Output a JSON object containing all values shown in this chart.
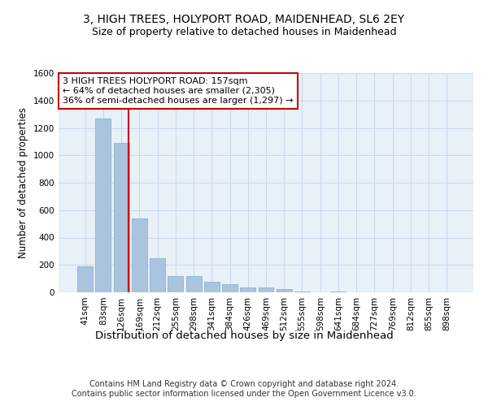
{
  "title1": "3, HIGH TREES, HOLYPORT ROAD, MAIDENHEAD, SL6 2EY",
  "title2": "Size of property relative to detached houses in Maidenhead",
  "xlabel": "Distribution of detached houses by size in Maidenhead",
  "ylabel": "Number of detached properties",
  "bar_color": "#aac4e0",
  "bar_edge_color": "#7aaed0",
  "grid_color": "#c8d8ec",
  "bg_color": "#e8f0f8",
  "categories": [
    "41sqm",
    "83sqm",
    "126sqm",
    "169sqm",
    "212sqm",
    "255sqm",
    "298sqm",
    "341sqm",
    "384sqm",
    "426sqm",
    "469sqm",
    "512sqm",
    "555sqm",
    "598sqm",
    "641sqm",
    "684sqm",
    "727sqm",
    "769sqm",
    "812sqm",
    "855sqm",
    "898sqm"
  ],
  "values": [
    190,
    1270,
    1090,
    540,
    250,
    120,
    120,
    80,
    60,
    35,
    35,
    25,
    5,
    0,
    5,
    0,
    0,
    0,
    0,
    0,
    0
  ],
  "ylim": [
    0,
    1600
  ],
  "yticks": [
    0,
    200,
    400,
    600,
    800,
    1000,
    1200,
    1400,
    1600
  ],
  "vline_x": 2.38,
  "vline_color": "#cc0000",
  "annotation_text": "3 HIGH TREES HOLYPORT ROAD: 157sqm\n← 64% of detached houses are smaller (2,305)\n36% of semi-detached houses are larger (1,297) →",
  "annotation_box_color": "#ffffff",
  "annotation_box_edge": "#cc0000",
  "footer1": "Contains HM Land Registry data © Crown copyright and database right 2024.",
  "footer2": "Contains public sector information licensed under the Open Government Licence v3.0.",
  "title1_fontsize": 10,
  "title2_fontsize": 9,
  "xlabel_fontsize": 9.5,
  "ylabel_fontsize": 8.5,
  "tick_fontsize": 7.5,
  "annotation_fontsize": 8,
  "footer_fontsize": 7
}
